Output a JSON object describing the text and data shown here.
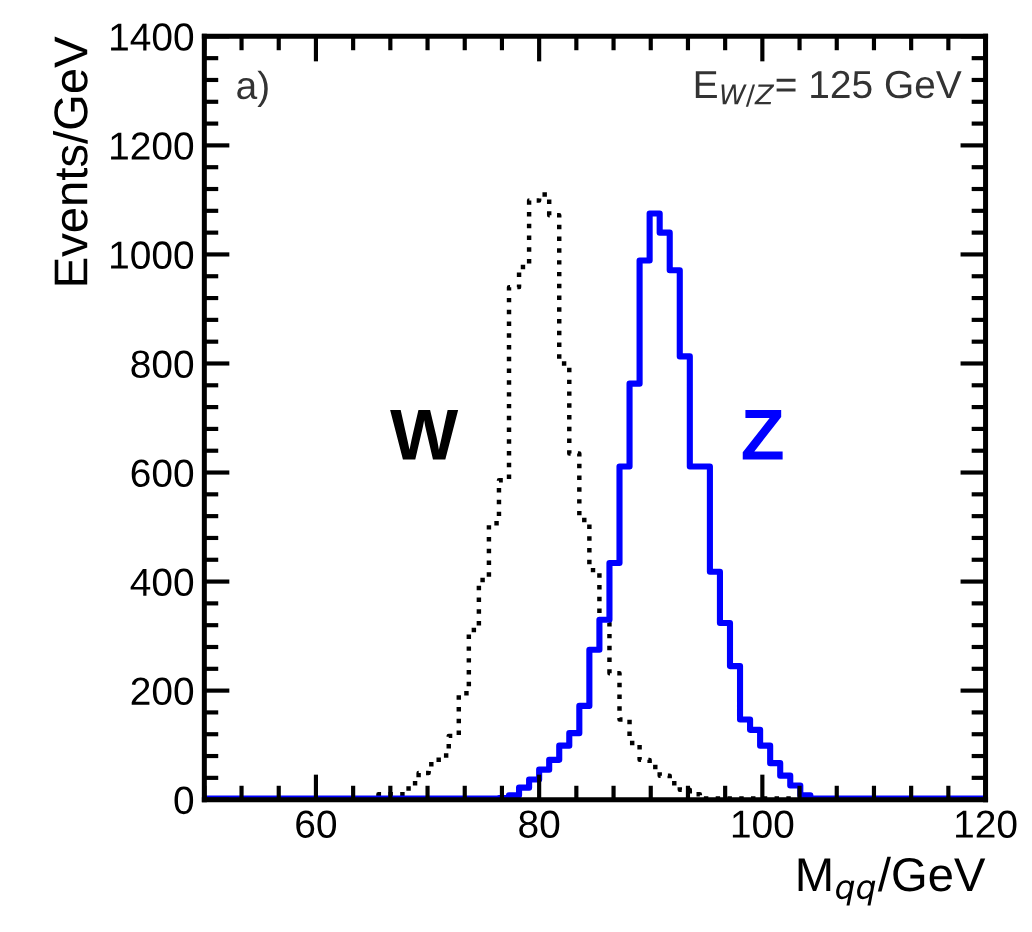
{
  "chart_data": {
    "type": "histogram",
    "xlabel": "M$_{qq}$/GeV",
    "ylabel": "Events/GeV",
    "xlim": [
      50,
      120
    ],
    "ylim": [
      0,
      1400
    ],
    "xticks": [
      60,
      80,
      100,
      120
    ],
    "yticks": [
      0,
      200,
      400,
      600,
      800,
      1000,
      1200,
      1400
    ],
    "grid": false,
    "annotations": [
      "a)",
      "E$_{W/Z}$= 125 GeV"
    ],
    "bins": [
      50,
      65.6,
      66.5,
      67.4,
      68.3,
      69.2,
      70.1,
      71.0,
      71.9,
      72.8,
      73.7,
      74.6,
      75.5,
      76.4,
      77.3,
      78.2,
      79.1,
      80.0,
      80.9,
      81.8,
      82.7,
      83.6,
      84.5,
      85.4,
      86.3,
      87.2,
      88.1,
      89.0,
      89.9,
      90.8,
      91.7,
      92.6,
      93.5,
      94.4,
      95.3,
      96.2,
      97.1,
      98.0,
      98.9,
      99.8,
      100.7,
      101.6,
      102.5,
      103.4,
      104.3,
      120
    ],
    "series": [
      {
        "name": "W",
        "color": "#000000",
        "line_style": "dotted",
        "values": [
          2,
          10,
          10,
          10,
          30,
          49,
          65,
          81,
          117,
          195,
          311,
          403,
          507,
          586,
          940,
          977,
          1099,
          1110,
          1072,
          800,
          635,
          513,
          421,
          324,
          232,
          147,
          104,
          73,
          60,
          44,
          30,
          18,
          10,
          2,
          2,
          2,
          2,
          2,
          2,
          2,
          2,
          2,
          2,
          2,
          2
        ]
      },
      {
        "name": "Z",
        "color": "#0000ff",
        "line_style": "solid",
        "values": [
          2,
          2,
          2,
          2,
          2,
          2,
          2,
          2,
          2,
          2,
          2,
          2,
          2,
          3,
          8,
          22,
          37,
          55,
          73,
          99,
          122,
          172,
          275,
          330,
          434,
          611,
          763,
          989,
          1075,
          1040,
          971,
          813,
          611,
          611,
          418,
          324,
          245,
          147,
          128,
          99,
          67,
          44,
          26,
          8,
          2
        ]
      }
    ]
  }
}
